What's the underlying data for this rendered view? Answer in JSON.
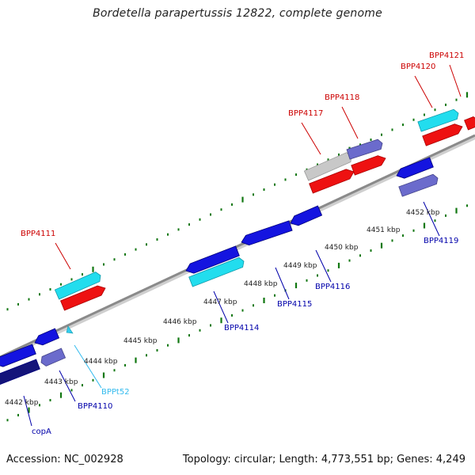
{
  "title": "Bordetella parapertussis 12822, complete genome",
  "footer": {
    "accession": "Accession: NC_002928",
    "topology": "Topology: circular; Length: 4,773,551 bp; Genes: 4,249"
  },
  "colors": {
    "forward_label": "#cc0000",
    "reverse_label": "#0000aa",
    "trna_label": "#33bbee",
    "tick": "#117711",
    "backbone": "#888888"
  },
  "kbp_labels": [
    "4442 kbp",
    "4443 kbp",
    "4444 kbp",
    "4445 kbp",
    "4446 kbp",
    "4447 kbp",
    "4448 kbp",
    "4449 kbp",
    "4450 kbp",
    "4451 kbp",
    "4452 kbp"
  ],
  "gene_labels": [
    "BPP4111",
    "BPP4117",
    "BPP4118",
    "BPP4120",
    "BPP4121",
    "copA",
    "BPP4110",
    "BPPt52",
    "BPP4114",
    "BPP4115",
    "BPP4116",
    "BPP4119"
  ]
}
